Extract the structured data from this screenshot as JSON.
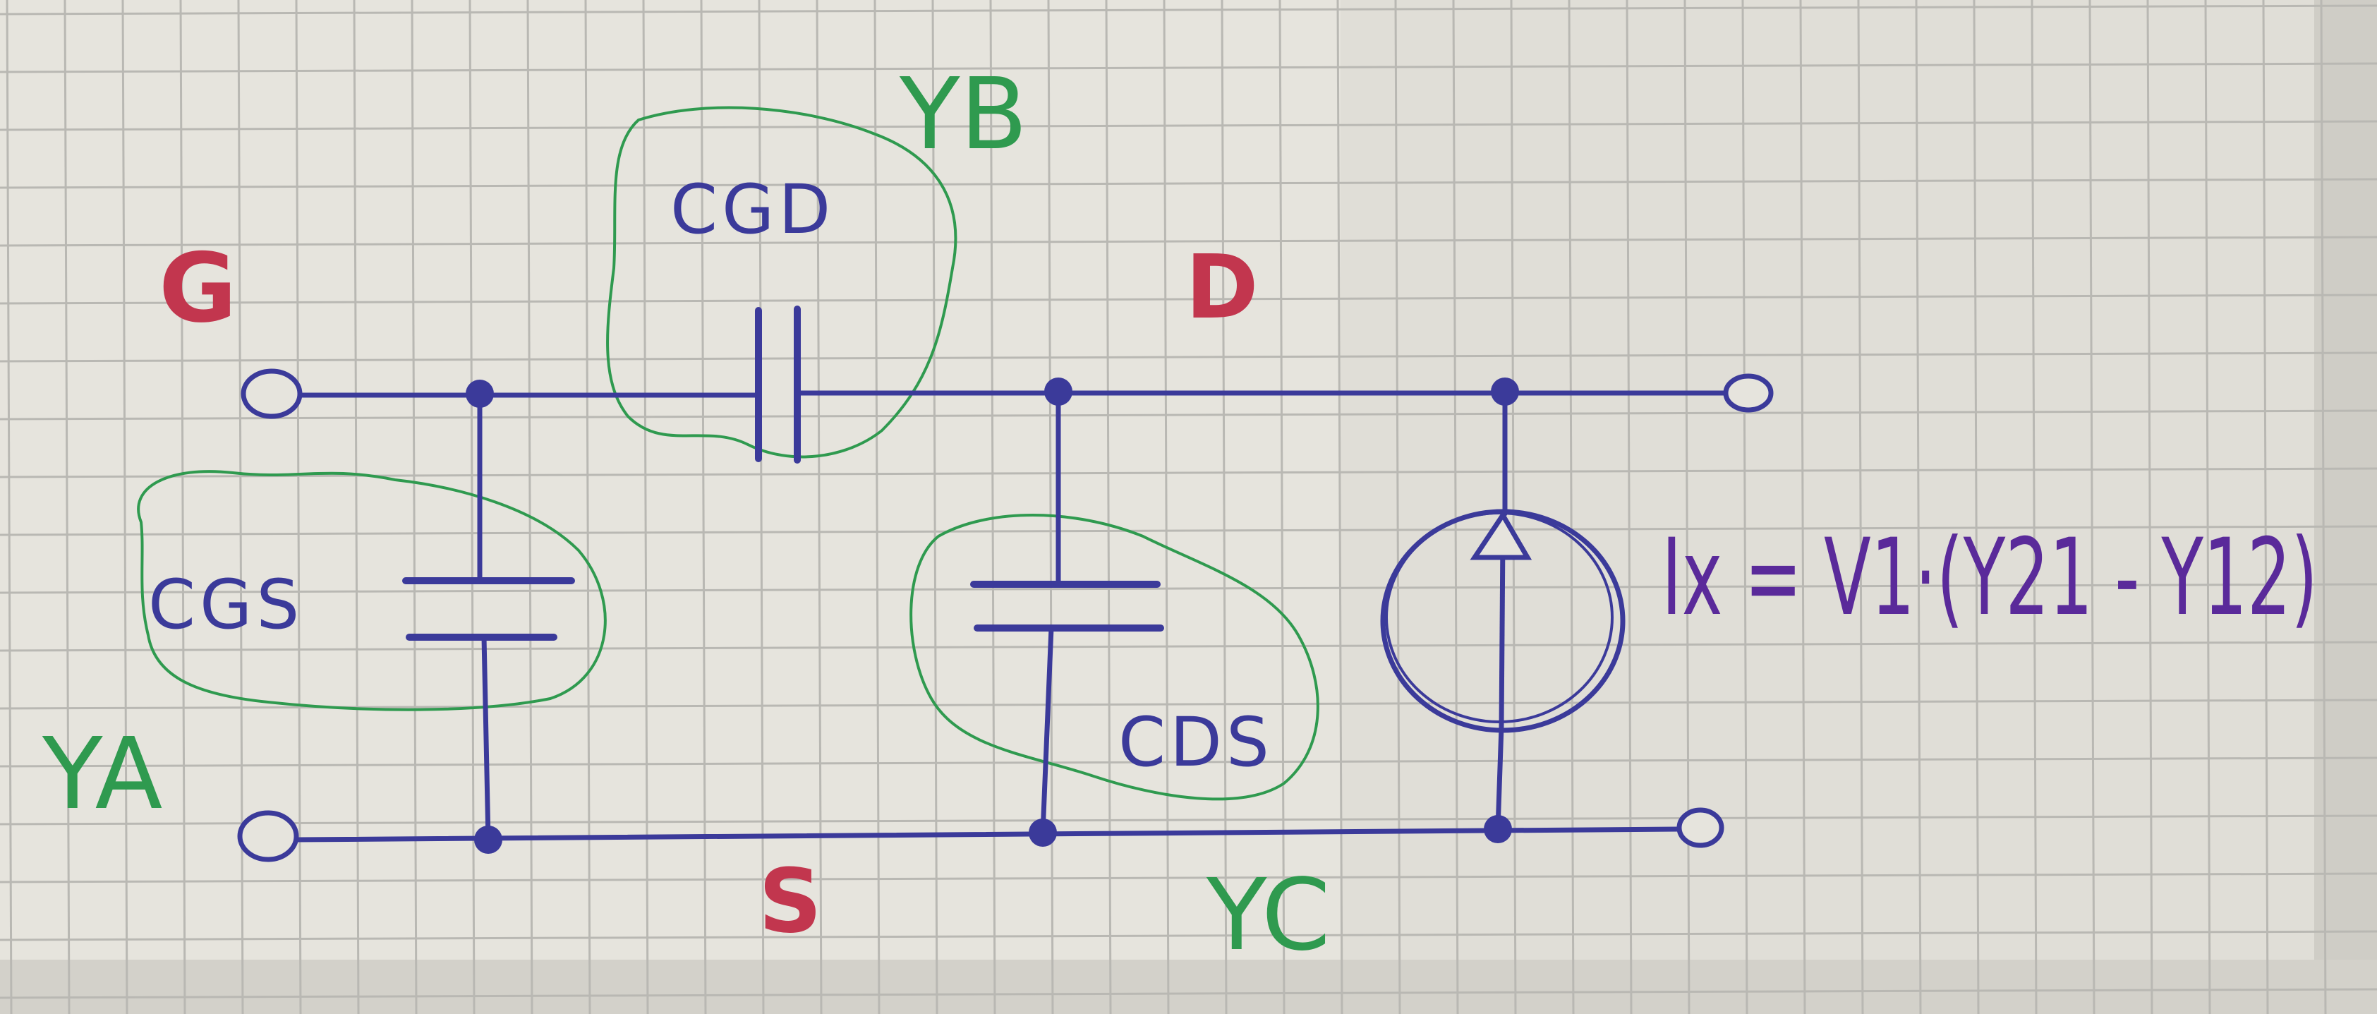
{
  "colors": {
    "paper": "#e6e4dd",
    "grid": "#b9b8b3",
    "wire": "#3b3a9a",
    "terminal_label": "#c2364e",
    "admittance_label": "#2f9a4f",
    "equation": "#5a2a9a"
  },
  "nodes": {
    "gate": "G",
    "drain": "D",
    "source": "S"
  },
  "capacitors": {
    "gate_source": "CGS",
    "gate_drain": "CGD",
    "drain_source": "CDS"
  },
  "admittances": {
    "a": "YA",
    "b": "YB",
    "c": "YC"
  },
  "source": {
    "equation": "Ix = V1·(Y21 - Y12)"
  }
}
